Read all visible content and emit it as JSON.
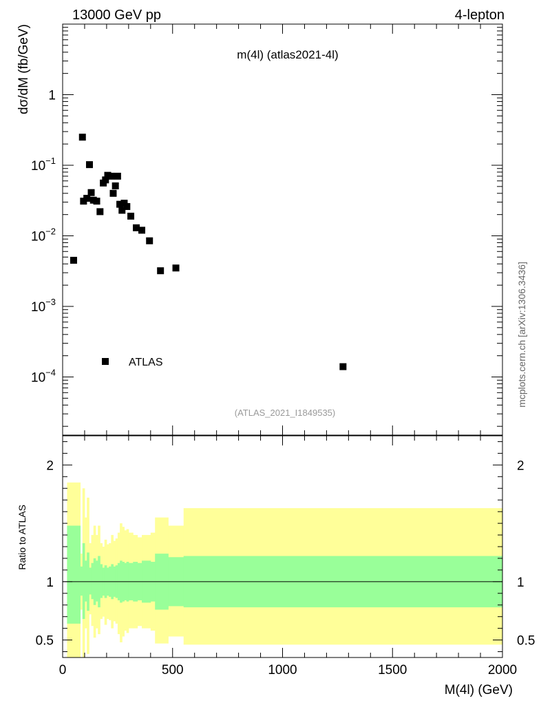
{
  "header": {
    "left": "13000 GeV pp",
    "right": "4-lepton"
  },
  "side_label": "mcplots.cern.ch [arXiv:1306.3436]",
  "chart_data": [
    {
      "type": "scatter",
      "title": "m(4l) (atlas2021-4l)",
      "ylabel": "dσ/dM (fb/GeV)",
      "xlabel": "",
      "yscale": "log",
      "xlim": [
        0,
        2000
      ],
      "ylim": [
        1.5e-05,
        10
      ],
      "legend": {
        "position": "lower-left",
        "entries": [
          "ATLAS"
        ]
      },
      "ref_label": "(ATLAS_2021_I1849535)",
      "y_ticks": [
        {
          "value": 1,
          "base": "1",
          "exp": ""
        },
        {
          "value": 0.1,
          "base": "10",
          "exp": "−1"
        },
        {
          "value": 0.01,
          "base": "10",
          "exp": "−2"
        },
        {
          "value": 0.001,
          "base": "10",
          "exp": "−3"
        },
        {
          "value": 0.0001,
          "base": "10",
          "exp": "−4"
        }
      ],
      "series": [
        {
          "name": "ATLAS",
          "color": "#000000",
          "points": [
            {
              "x": 50,
              "y": 0.0045
            },
            {
              "x": 90,
              "y": 0.25
            },
            {
              "x": 95,
              "y": 0.031
            },
            {
              "x": 110,
              "y": 0.034
            },
            {
              "x": 122,
              "y": 0.102
            },
            {
              "x": 130,
              "y": 0.041
            },
            {
              "x": 140,
              "y": 0.032
            },
            {
              "x": 155,
              "y": 0.031
            },
            {
              "x": 170,
              "y": 0.022
            },
            {
              "x": 185,
              "y": 0.056
            },
            {
              "x": 195,
              "y": 0.062
            },
            {
              "x": 205,
              "y": 0.072
            },
            {
              "x": 220,
              "y": 0.07
            },
            {
              "x": 230,
              "y": 0.04
            },
            {
              "x": 240,
              "y": 0.051
            },
            {
              "x": 250,
              "y": 0.07
            },
            {
              "x": 260,
              "y": 0.028
            },
            {
              "x": 270,
              "y": 0.023
            },
            {
              "x": 280,
              "y": 0.029
            },
            {
              "x": 292,
              "y": 0.026
            },
            {
              "x": 310,
              "y": 0.019
            },
            {
              "x": 335,
              "y": 0.013
            },
            {
              "x": 360,
              "y": 0.012
            },
            {
              "x": 395,
              "y": 0.0085
            },
            {
              "x": 445,
              "y": 0.0032
            },
            {
              "x": 515,
              "y": 0.0035
            },
            {
              "x": 1275,
              "y": 0.00014
            }
          ]
        }
      ]
    },
    {
      "type": "area",
      "ylabel": "Ratio to ATLAS",
      "xlabel": "M(4l) (GeV)",
      "xlim": [
        0,
        2000
      ],
      "ylim": [
        0.35,
        2.25
      ],
      "x_ticks": [
        "0",
        "500",
        "1000",
        "1500",
        "2000"
      ],
      "y_ticks": [
        "0.5",
        "1",
        "2"
      ],
      "reference_line": 1,
      "bands": [
        {
          "name": "stat",
          "color": "#99ff99",
          "bins": [
            {
              "x0": 20,
              "x1": 80,
              "lo": 0.64,
              "hi": 1.48
            },
            {
              "x0": 80,
              "x1": 90,
              "lo": 0.88,
              "hi": 1.13
            },
            {
              "x0": 90,
              "x1": 100,
              "lo": 0.68,
              "hi": 1.33
            },
            {
              "x0": 100,
              "x1": 110,
              "lo": 0.83,
              "hi": 1.18
            },
            {
              "x0": 110,
              "x1": 120,
              "lo": 0.75,
              "hi": 1.25
            },
            {
              "x0": 120,
              "x1": 130,
              "lo": 0.89,
              "hi": 1.12
            },
            {
              "x0": 130,
              "x1": 140,
              "lo": 0.85,
              "hi": 1.16
            },
            {
              "x0": 140,
              "x1": 150,
              "lo": 0.8,
              "hi": 1.2
            },
            {
              "x0": 150,
              "x1": 160,
              "lo": 0.83,
              "hi": 1.18
            },
            {
              "x0": 160,
              "x1": 170,
              "lo": 0.78,
              "hi": 1.22
            },
            {
              "x0": 170,
              "x1": 180,
              "lo": 0.86,
              "hi": 1.15
            },
            {
              "x0": 180,
              "x1": 190,
              "lo": 0.88,
              "hi": 1.12
            },
            {
              "x0": 190,
              "x1": 200,
              "lo": 0.86,
              "hi": 1.14
            },
            {
              "x0": 200,
              "x1": 210,
              "lo": 0.88,
              "hi": 1.12
            },
            {
              "x0": 210,
              "x1": 220,
              "lo": 0.87,
              "hi": 1.13
            },
            {
              "x0": 220,
              "x1": 230,
              "lo": 0.85,
              "hi": 1.15
            },
            {
              "x0": 230,
              "x1": 240,
              "lo": 0.87,
              "hi": 1.13
            },
            {
              "x0": 240,
              "x1": 250,
              "lo": 0.86,
              "hi": 1.14
            },
            {
              "x0": 250,
              "x1": 260,
              "lo": 0.84,
              "hi": 1.16
            },
            {
              "x0": 260,
              "x1": 270,
              "lo": 0.82,
              "hi": 1.18
            },
            {
              "x0": 270,
              "x1": 280,
              "lo": 0.83,
              "hi": 1.17
            },
            {
              "x0": 280,
              "x1": 290,
              "lo": 0.84,
              "hi": 1.16
            },
            {
              "x0": 290,
              "x1": 300,
              "lo": 0.83,
              "hi": 1.17
            },
            {
              "x0": 300,
              "x1": 320,
              "lo": 0.84,
              "hi": 1.16
            },
            {
              "x0": 320,
              "x1": 340,
              "lo": 0.83,
              "hi": 1.17
            },
            {
              "x0": 340,
              "x1": 360,
              "lo": 0.84,
              "hi": 1.16
            },
            {
              "x0": 360,
              "x1": 400,
              "lo": 0.82,
              "hi": 1.18
            },
            {
              "x0": 400,
              "x1": 420,
              "lo": 0.83,
              "hi": 1.17
            },
            {
              "x0": 420,
              "x1": 480,
              "lo": 0.76,
              "hi": 1.24
            },
            {
              "x0": 480,
              "x1": 550,
              "lo": 0.79,
              "hi": 1.21
            },
            {
              "x0": 550,
              "x1": 2000,
              "lo": 0.78,
              "hi": 1.22
            }
          ]
        },
        {
          "name": "syst",
          "color": "#ffff99",
          "bins": [
            {
              "x0": 20,
              "x1": 80,
              "lo": 0.35,
              "hi": 1.85
            },
            {
              "x0": 80,
              "x1": 90,
              "lo": 0.76,
              "hi": 1.24
            },
            {
              "x0": 90,
              "x1": 100,
              "lo": 0.35,
              "hi": 1.8
            },
            {
              "x0": 100,
              "x1": 110,
              "lo": 0.6,
              "hi": 1.55
            },
            {
              "x0": 110,
              "x1": 120,
              "lo": 0.38,
              "hi": 1.72
            },
            {
              "x0": 120,
              "x1": 130,
              "lo": 0.72,
              "hi": 1.33
            },
            {
              "x0": 130,
              "x1": 140,
              "lo": 0.62,
              "hi": 1.4
            },
            {
              "x0": 140,
              "x1": 150,
              "lo": 0.52,
              "hi": 1.48
            },
            {
              "x0": 150,
              "x1": 160,
              "lo": 0.6,
              "hi": 1.4
            },
            {
              "x0": 160,
              "x1": 170,
              "lo": 0.55,
              "hi": 1.48
            },
            {
              "x0": 170,
              "x1": 180,
              "lo": 0.68,
              "hi": 1.33
            },
            {
              "x0": 180,
              "x1": 190,
              "lo": 0.7,
              "hi": 1.3
            },
            {
              "x0": 190,
              "x1": 200,
              "lo": 0.63,
              "hi": 1.36
            },
            {
              "x0": 200,
              "x1": 210,
              "lo": 0.68,
              "hi": 1.32
            },
            {
              "x0": 210,
              "x1": 220,
              "lo": 0.67,
              "hi": 1.33
            },
            {
              "x0": 220,
              "x1": 230,
              "lo": 0.6,
              "hi": 1.4
            },
            {
              "x0": 230,
              "x1": 240,
              "lo": 0.66,
              "hi": 1.35
            },
            {
              "x0": 240,
              "x1": 250,
              "lo": 0.64,
              "hi": 1.37
            },
            {
              "x0": 250,
              "x1": 260,
              "lo": 0.55,
              "hi": 1.42
            },
            {
              "x0": 260,
              "x1": 270,
              "lo": 0.48,
              "hi": 1.5
            },
            {
              "x0": 270,
              "x1": 280,
              "lo": 0.53,
              "hi": 1.47
            },
            {
              "x0": 280,
              "x1": 290,
              "lo": 0.58,
              "hi": 1.44
            },
            {
              "x0": 290,
              "x1": 300,
              "lo": 0.56,
              "hi": 1.45
            },
            {
              "x0": 300,
              "x1": 320,
              "lo": 0.6,
              "hi": 1.42
            },
            {
              "x0": 320,
              "x1": 340,
              "lo": 0.6,
              "hi": 1.4
            },
            {
              "x0": 340,
              "x1": 360,
              "lo": 0.62,
              "hi": 1.38
            },
            {
              "x0": 360,
              "x1": 400,
              "lo": 0.6,
              "hi": 1.4
            },
            {
              "x0": 400,
              "x1": 420,
              "lo": 0.58,
              "hi": 1.42
            },
            {
              "x0": 420,
              "x1": 480,
              "lo": 0.47,
              "hi": 1.55
            },
            {
              "x0": 480,
              "x1": 550,
              "lo": 0.53,
              "hi": 1.48
            },
            {
              "x0": 550,
              "x1": 2000,
              "lo": 0.46,
              "hi": 1.63
            }
          ]
        }
      ]
    }
  ]
}
